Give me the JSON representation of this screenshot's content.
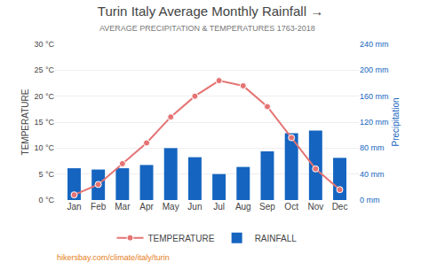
{
  "chart_data": {
    "type": "bar",
    "title": "Turin Italy Average Monthly Rainfall →",
    "subtitle": "AVERAGE PRECIPITATION & TEMPERATURES 1763-2018",
    "footer": "hikersbay.com/climate/italy/turin",
    "categories": [
      "Jan",
      "Feb",
      "Mar",
      "Apr",
      "May",
      "Jun",
      "Jul",
      "Aug",
      "Sep",
      "Oct",
      "Nov",
      "Dec"
    ],
    "series": [
      {
        "name": "TEMPERATURE",
        "type": "line",
        "color": "#e57373",
        "marker": "circle",
        "values": [
          1,
          3,
          7,
          11,
          16,
          20,
          23,
          22,
          18,
          12,
          6,
          2
        ]
      },
      {
        "name": "RAINFALL",
        "type": "bar",
        "color": "#1565C0",
        "axis": "y2",
        "values": [
          49,
          47,
          49,
          54,
          80,
          66,
          40,
          51,
          75,
          103,
          107,
          65
        ]
      }
    ],
    "ylabel": "TEMPERATURE",
    "y2label": "Precipitation",
    "ylim": [
      0,
      30
    ],
    "yticks": [
      {
        "value": 0,
        "label": "0 °C"
      },
      {
        "value": 5,
        "label": "5 °C"
      },
      {
        "value": 10,
        "label": "10 °C"
      },
      {
        "value": 15,
        "label": "15 °C"
      },
      {
        "value": 20,
        "label": "20 °C"
      },
      {
        "value": 25,
        "label": "25 °C"
      },
      {
        "value": 30,
        "label": "30 °C"
      }
    ],
    "y2lim": [
      0,
      240
    ],
    "y2ticks": [
      {
        "value": 0,
        "label": "0 mm"
      },
      {
        "value": 40,
        "label": "40 mm"
      },
      {
        "value": 80,
        "label": "80 mm"
      },
      {
        "value": 120,
        "label": "120 mm"
      },
      {
        "value": 160,
        "label": "160 mm"
      },
      {
        "value": 200,
        "label": "200 mm"
      },
      {
        "value": 240,
        "label": "240 mm"
      }
    ],
    "grid": true,
    "legend": "bottom"
  }
}
